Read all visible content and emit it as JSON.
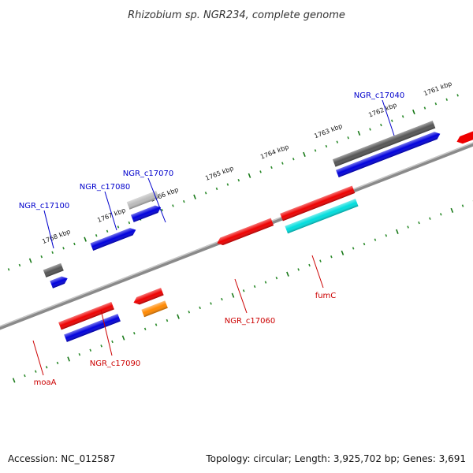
{
  "title": "Rhizobium sp. NGR234, complete genome",
  "footer": {
    "accession": "Accession: NC_012587",
    "summary": "Topology: circular; Length: 3,925,702 bp; Genes: 3,691"
  },
  "colors": {
    "backbone": "#888888",
    "tick_major": "#1a7a1a",
    "tick_minor": "#2a8a2a",
    "label_forward": "#0000cc",
    "label_reverse": "#cc0000",
    "red": "#ee0000",
    "blue": "#0000dd",
    "dark_gray": "#555555",
    "light_gray": "#bbbbbb",
    "cyan": "#00dddd",
    "orange": "#ff8800"
  },
  "ticks": [
    {
      "label": "1768 kbp"
    },
    {
      "label": "1767 kbp"
    },
    {
      "label": "1766 kbp"
    },
    {
      "label": "1765 kbp"
    },
    {
      "label": "1764 kbp"
    },
    {
      "label": "1763 kbp"
    },
    {
      "label": "1762 kbp"
    },
    {
      "label": "1761 kbp"
    }
  ],
  "gene_labels": {
    "forward": [
      "NGR_c17100",
      "NGR_c17080",
      "NGR_c17070",
      "NGR_c17040"
    ],
    "reverse": [
      "moaA",
      "NGR_c17090",
      "NGR_c17060",
      "fumC"
    ]
  },
  "features": [
    {
      "name": "NGR_c17100",
      "color": "dark_gray"
    },
    {
      "name": "NGR_c17100-blue",
      "color": "blue"
    },
    {
      "name": "NGR_c17080",
      "color": "blue"
    },
    {
      "name": "NGR_c17070-gray",
      "color": "light_gray"
    },
    {
      "name": "NGR_c17070",
      "color": "blue"
    },
    {
      "name": "NGR_c17040-gray",
      "color": "dark_gray"
    },
    {
      "name": "NGR_c17040",
      "color": "blue"
    },
    {
      "name": "moaA",
      "color": "red"
    },
    {
      "name": "moaA-blue",
      "color": "blue"
    },
    {
      "name": "NGR_c17090",
      "color": "red"
    },
    {
      "name": "NGR_c17090-orange",
      "color": "orange"
    },
    {
      "name": "NGR_c17060",
      "color": "red"
    },
    {
      "name": "fumC-red",
      "color": "red"
    },
    {
      "name": "fumC",
      "color": "cyan"
    }
  ]
}
